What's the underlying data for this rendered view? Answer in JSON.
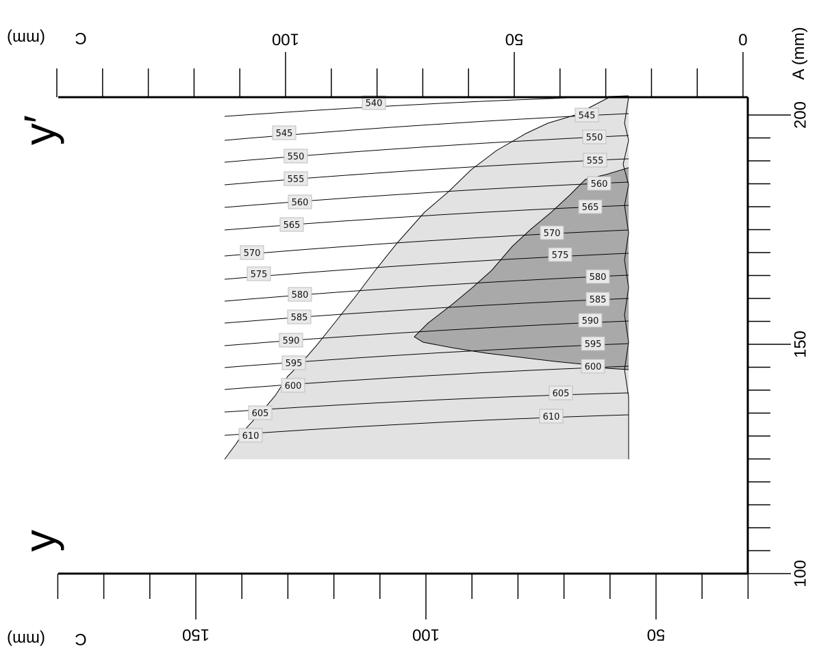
{
  "chart_data": {
    "type": "contour",
    "top_axis": {
      "label": "C",
      "unit": "(mm)",
      "range": [
        0,
        150
      ],
      "ticks": [
        0,
        50,
        100
      ],
      "tick_labels": [
        "0",
        "50",
        "100"
      ],
      "minor_step": 10
    },
    "bottom_axis": {
      "label": "C",
      "unit": "(mm)",
      "range": [
        30,
        180
      ],
      "ticks": [
        50,
        100,
        150
      ],
      "tick_labels": [
        "50",
        "100",
        "150"
      ],
      "minor_step": 10
    },
    "side_axis": {
      "label": "A (mm)",
      "range": [
        100,
        210
      ],
      "ticks": [
        100,
        150,
        200
      ],
      "tick_labels": [
        "100",
        "150",
        "200"
      ],
      "minor_step": 5
    },
    "corner_labels": {
      "top": "y′",
      "bottom": "y"
    },
    "contour_levels": [
      "540",
      "545",
      "550",
      "555",
      "560",
      "565",
      "570",
      "575",
      "580",
      "585",
      "590",
      "595",
      "600",
      "605",
      "610"
    ],
    "fill_colors": {
      "light": "#e2e2e2",
      "dark": "#a9a9a9"
    }
  }
}
